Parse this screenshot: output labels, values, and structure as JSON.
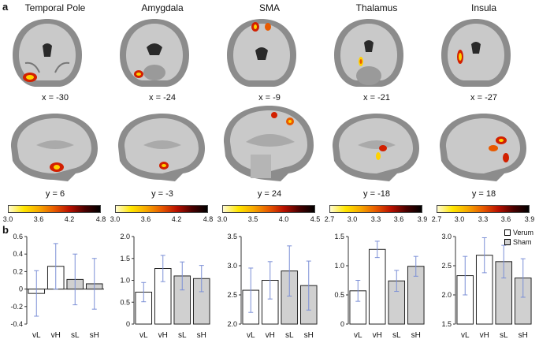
{
  "panel_a": {
    "label": "a",
    "regions": [
      {
        "title": "Temporal Pole",
        "coronal_label": "x = -30",
        "sagittal_label": "y = 6",
        "colorbar_ticks": [
          "3.0",
          "3.6",
          "4.2",
          "4.8"
        ]
      },
      {
        "title": "Amygdala",
        "coronal_label": "x = -24",
        "sagittal_label": "y = -3",
        "colorbar_ticks": [
          "3.0",
          "3.6",
          "4.2",
          "4.8"
        ]
      },
      {
        "title": "SMA",
        "coronal_label": "x = -9",
        "sagittal_label": "y = 24",
        "colorbar_ticks": [
          "3.0",
          "3.5",
          "4.0",
          "4.5"
        ]
      },
      {
        "title": "Thalamus",
        "coronal_label": "x = -21",
        "sagittal_label": "y = -18",
        "colorbar_ticks": [
          "2.7",
          "3.0",
          "3.3",
          "3.6",
          "3.9"
        ]
      },
      {
        "title": "Insula",
        "coronal_label": "x = -27",
        "sagittal_label": "y = 18",
        "colorbar_ticks": [
          "2.7",
          "3.0",
          "3.3",
          "3.6",
          "3.9"
        ]
      }
    ],
    "colorbar_colors": [
      "#fffbd2",
      "#ffe600",
      "#e85a00",
      "#4a0000",
      "#000000"
    ]
  },
  "panel_b": {
    "label": "b",
    "legend": [
      {
        "label": "Verum",
        "color": "#ffffff"
      },
      {
        "label": "Sham",
        "color": "#d0d0d0"
      }
    ]
  },
  "chart_data": [
    {
      "type": "bar",
      "region": "Temporal Pole",
      "categories": [
        "vL",
        "vH",
        "sL",
        "sH"
      ],
      "values": [
        -0.05,
        0.26,
        0.11,
        0.06
      ],
      "errors": [
        0.26,
        0.26,
        0.29,
        0.29
      ],
      "ylim": [
        -0.4,
        0.6
      ],
      "yticks": [
        "-0.4",
        "-0.2",
        "0",
        "0.2",
        "0.4",
        "0.6"
      ],
      "ytick_values": [
        -0.4,
        -0.2,
        0,
        0.2,
        0.4,
        0.6
      ],
      "fills": [
        "#ffffff",
        "#ffffff",
        "#d0d0d0",
        "#d0d0d0"
      ]
    },
    {
      "type": "bar",
      "region": "Amygdala",
      "categories": [
        "vL",
        "vH",
        "sL",
        "sH"
      ],
      "values": [
        0.73,
        1.27,
        1.1,
        1.04
      ],
      "errors": [
        0.22,
        0.3,
        0.32,
        0.3
      ],
      "ylim": [
        0,
        2.0
      ],
      "yticks": [
        "0",
        "0.5",
        "1.0",
        "1.5",
        "2.0"
      ],
      "ytick_values": [
        0,
        0.5,
        1.0,
        1.5,
        2.0
      ],
      "fills": [
        "#ffffff",
        "#ffffff",
        "#d0d0d0",
        "#d0d0d0"
      ]
    },
    {
      "type": "bar",
      "region": "SMA",
      "categories": [
        "vL",
        "vH",
        "sL",
        "sH"
      ],
      "values": [
        2.58,
        2.75,
        2.91,
        2.66
      ],
      "errors": [
        0.38,
        0.32,
        0.43,
        0.42
      ],
      "ylim": [
        2.0,
        3.5
      ],
      "yticks": [
        "2.0",
        "2.5",
        "3.0",
        "3.5"
      ],
      "ytick_values": [
        2.0,
        2.5,
        3.0,
        3.5
      ],
      "fills": [
        "#ffffff",
        "#ffffff",
        "#d0d0d0",
        "#d0d0d0"
      ]
    },
    {
      "type": "bar",
      "region": "Thalamus",
      "categories": [
        "vL",
        "vH",
        "sL",
        "sH"
      ],
      "values": [
        0.57,
        1.28,
        0.74,
        0.99
      ],
      "errors": [
        0.18,
        0.14,
        0.18,
        0.17
      ],
      "ylim": [
        0,
        1.5
      ],
      "yticks": [
        "0",
        "0.5",
        "1.0",
        "1.5"
      ],
      "ytick_values": [
        0,
        0.5,
        1.0,
        1.5
      ],
      "fills": [
        "#ffffff",
        "#ffffff",
        "#d0d0d0",
        "#d0d0d0"
      ]
    },
    {
      "type": "bar",
      "region": "Insula",
      "categories": [
        "vL",
        "vH",
        "sL",
        "sH"
      ],
      "values": [
        2.33,
        2.68,
        2.57,
        2.29
      ],
      "errors": [
        0.33,
        0.3,
        0.28,
        0.33
      ],
      "ylim": [
        1.5,
        3.0
      ],
      "yticks": [
        "1.5",
        "2.0",
        "2.5",
        "3.0"
      ],
      "ytick_values": [
        1.5,
        2.0,
        2.5,
        3.0
      ],
      "fills": [
        "#ffffff",
        "#ffffff",
        "#d0d0d0",
        "#d0d0d0"
      ]
    }
  ]
}
